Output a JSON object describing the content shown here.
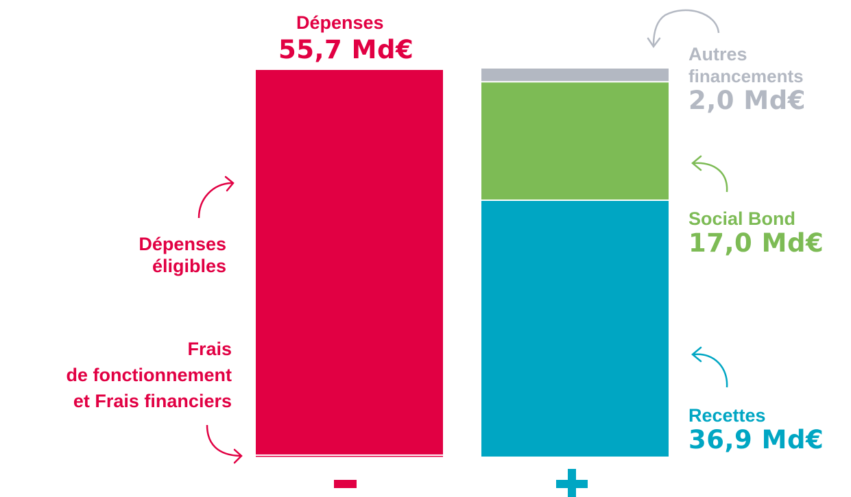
{
  "colors": {
    "depenses": "#e10043",
    "recettes": "#00a6c3",
    "social_bond": "#7dbb55",
    "autres": "#b3b8c2"
  },
  "chart_data": {
    "type": "bar",
    "stacked": true,
    "categories": [
      "-",
      "+"
    ],
    "ylim": [
      0,
      55.9
    ],
    "series": [
      {
        "name": "Frais de fonctionnement et Frais financiers",
        "category": "-",
        "values": [
          0.3,
          0
        ]
      },
      {
        "name": "Dépenses éligibles",
        "category": "-",
        "values": [
          55.4,
          0
        ]
      },
      {
        "name": "Recettes",
        "category": "+",
        "values": [
          0,
          36.9
        ]
      },
      {
        "name": "Social Bond",
        "category": "+",
        "values": [
          0,
          17.0
        ]
      },
      {
        "name": "Autres financements",
        "category": "+",
        "values": [
          0,
          2.0
        ]
      }
    ]
  },
  "labels": {
    "depenses": {
      "name": "Dépenses",
      "value": "55,7 Md€"
    },
    "depenses_eligibles": [
      "Dépenses",
      "éligibles"
    ],
    "frais": [
      "Frais",
      "de fonctionnement",
      "et Frais financiers"
    ],
    "autres": {
      "name": [
        "Autres",
        "financements"
      ],
      "value": "2,0 Md€"
    },
    "social_bond": {
      "name": "Social Bond",
      "value": "17,0 Md€"
    },
    "recettes": {
      "name": "Recettes",
      "value": "36,9 Md€"
    }
  },
  "signs": {
    "minus": "minus-sign",
    "plus": "plus-sign"
  }
}
